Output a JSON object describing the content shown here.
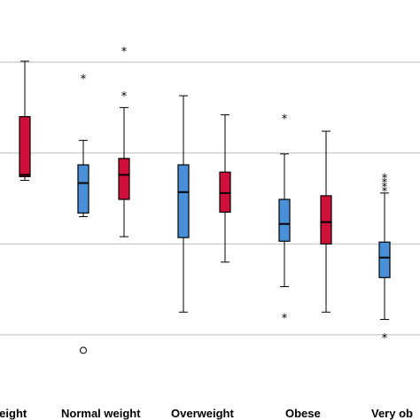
{
  "chart_data": {
    "type": "boxplot",
    "title": "",
    "xlabel": "",
    "ylabel": "",
    "ylim": [
      0,
      4
    ],
    "gridlines": [
      1,
      2,
      3,
      4
    ],
    "grid": true,
    "legend": "none",
    "colors": {
      "blue": "#4a90d9",
      "red": "#d0103a",
      "grid": "#bdbdbd"
    },
    "categories": [
      "Underweight",
      "Normal weight",
      "Overweight",
      "Obese",
      "Very obese"
    ],
    "category_labels_visible": [
      "rweight",
      "Normal weight",
      "Overweight",
      "Obese",
      "Very ob"
    ],
    "series": [
      {
        "color_key": "blue",
        "boxes": [
          null,
          {
            "category": "Normal weight",
            "whisker_low": 2.3,
            "q1": 2.34,
            "median": 2.67,
            "q3": 2.87,
            "whisker_high": 3.14,
            "outliers": [
              {
                "value": 0.83,
                "marker": "circle"
              },
              {
                "value": 3.86,
                "marker": "star"
              }
            ]
          },
          {
            "category": "Overweight",
            "whisker_low": 1.25,
            "q1": 2.07,
            "median": 2.57,
            "q3": 2.87,
            "whisker_high": 3.63,
            "outliers": []
          },
          {
            "category": "Obese",
            "whisker_low": 1.53,
            "q1": 2.03,
            "median": 2.22,
            "q3": 2.49,
            "whisker_high": 2.99,
            "outliers": [
              {
                "value": 1.23,
                "marker": "star"
              },
              {
                "value": 3.42,
                "marker": "star"
              }
            ]
          },
          {
            "category": "Very obese",
            "whisker_low": 1.17,
            "q1": 1.63,
            "median": 1.85,
            "q3": 2.02,
            "whisker_high": 2.56,
            "outliers": [
              {
                "value": 1.01,
                "marker": "star"
              },
              {
                "value": 2.62,
                "marker": "star"
              },
              {
                "value": 2.67,
                "marker": "star"
              },
              {
                "value": 2.72,
                "marker": "star"
              },
              {
                "value": 2.77,
                "marker": "star"
              }
            ]
          }
        ]
      },
      {
        "color_key": "red",
        "boxes": [
          {
            "category": "Underweight",
            "whisker_low": 2.7,
            "q1": 2.74,
            "median": 2.76,
            "q3": 3.4,
            "whisker_high": 4.01,
            "outliers": []
          },
          {
            "category": "Normal weight",
            "whisker_low": 2.08,
            "q1": 2.49,
            "median": 2.76,
            "q3": 2.94,
            "whisker_high": 3.5,
            "outliers": [
              {
                "value": 3.67,
                "marker": "star"
              },
              {
                "value": 4.16,
                "marker": "star"
              }
            ]
          },
          {
            "category": "Overweight",
            "whisker_low": 1.8,
            "q1": 2.35,
            "median": 2.56,
            "q3": 2.79,
            "whisker_high": 3.42,
            "outliers": []
          },
          {
            "category": "Obese",
            "whisker_low": 1.25,
            "q1": 2.0,
            "median": 2.24,
            "q3": 2.53,
            "whisker_high": 3.24,
            "outliers": []
          },
          null
        ]
      }
    ]
  }
}
